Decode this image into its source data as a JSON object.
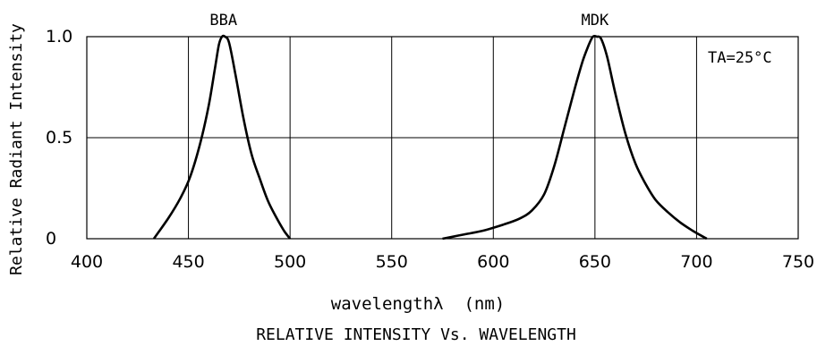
{
  "chart_data": {
    "type": "line",
    "title": "RELATIVE INTENSITY Vs. WAVELENGTH",
    "xlabel": "wavelengthλ  (nm)",
    "ylabel": "Relative Radiant Intensity",
    "xlim": [
      400,
      750
    ],
    "ylim": [
      0,
      1.0
    ],
    "xticks": [
      "400",
      "450",
      "500",
      "550",
      "600",
      "650",
      "700",
      "750"
    ],
    "yticks": [
      "0",
      "0.5",
      "1.0"
    ],
    "grid": true,
    "annotation": "TA=25°C",
    "series": [
      {
        "name": "BBA",
        "x": [
          433,
          440,
          446,
          451,
          456,
          460,
          463,
          465,
          466.5,
          468,
          470,
          473,
          477,
          481,
          485,
          489,
          493,
          497,
          500
        ],
        "y": [
          0.0,
          0.1,
          0.2,
          0.31,
          0.48,
          0.66,
          0.84,
          0.96,
          1.0,
          1.0,
          0.97,
          0.82,
          0.6,
          0.42,
          0.3,
          0.19,
          0.11,
          0.04,
          0.0
        ]
      },
      {
        "name": "MDK",
        "x": [
          575,
          585,
          595,
          605,
          613,
          619,
          625,
          630,
          635,
          640,
          644,
          647,
          649,
          651,
          653,
          656,
          660,
          665,
          670,
          675,
          680,
          686,
          692,
          698,
          705
        ],
        "y": [
          0.0,
          0.02,
          0.04,
          0.07,
          0.1,
          0.14,
          0.22,
          0.36,
          0.55,
          0.74,
          0.88,
          0.96,
          1.0,
          1.0,
          0.99,
          0.9,
          0.72,
          0.52,
          0.37,
          0.27,
          0.19,
          0.13,
          0.08,
          0.04,
          0.0
        ]
      }
    ]
  }
}
